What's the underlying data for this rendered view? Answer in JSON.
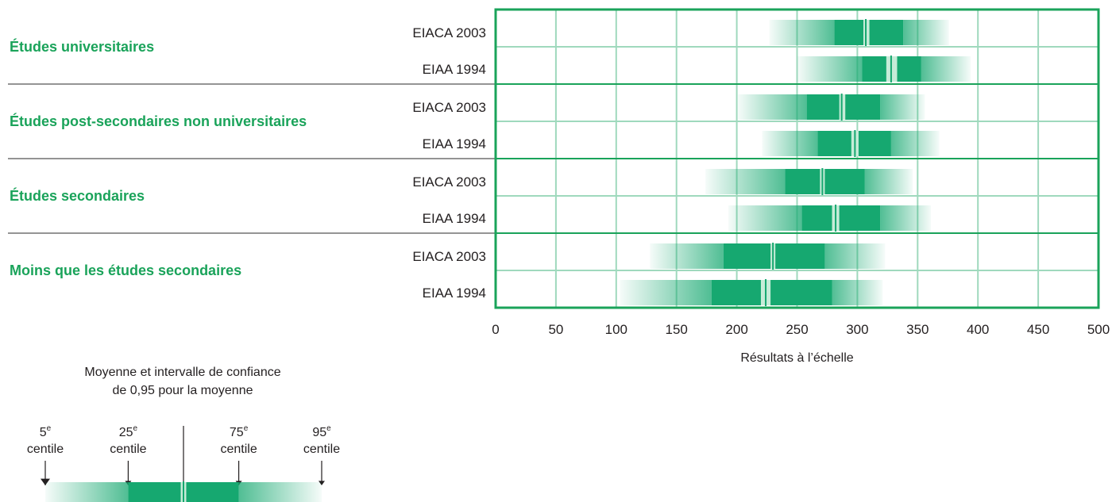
{
  "chart_data": {
    "type": "box-percentile",
    "xlabel": "Résultats à l’échelle",
    "xlim": [
      0,
      500
    ],
    "xticks": [
      0,
      50,
      100,
      150,
      200,
      250,
      300,
      350,
      400,
      450,
      500
    ],
    "groups": [
      {
        "name": "Études universitaires",
        "rows": [
          {
            "label": "EIACA 2003",
            "p5": 227,
            "p25": 281,
            "mean": 307,
            "ci": [
              305,
              310
            ],
            "p75": 338,
            "p95": 376
          },
          {
            "label": "EIAA 1994",
            "p5": 250,
            "p25": 304,
            "mean": 328,
            "ci": [
              324,
              333
            ],
            "p75": 353,
            "p95": 394
          }
        ]
      },
      {
        "name": "Études post-secondaires non universitaires",
        "rows": [
          {
            "label": "EIACA 2003",
            "p5": 201,
            "p25": 258,
            "mean": 287,
            "ci": [
              285,
              290
            ],
            "p75": 319,
            "p95": 356
          },
          {
            "label": "EIAA 1994",
            "p5": 221,
            "p25": 267,
            "mean": 298,
            "ci": [
              295,
              301
            ],
            "p75": 328,
            "p95": 368
          }
        ]
      },
      {
        "name": "Études secondaires",
        "rows": [
          {
            "label": "EIACA 2003",
            "p5": 174,
            "p25": 240,
            "mean": 271,
            "ci": [
              269,
              273
            ],
            "p75": 306,
            "p95": 346
          },
          {
            "label": "EIAA 1994",
            "p5": 193,
            "p25": 254,
            "mean": 282,
            "ci": [
              279,
              285
            ],
            "p75": 319,
            "p95": 361
          }
        ]
      },
      {
        "name": "Moins que les études secondaires",
        "rows": [
          {
            "label": "EIACA 2003",
            "p5": 128,
            "p25": 189,
            "mean": 230,
            "ci": [
              228,
              232
            ],
            "p75": 273,
            "p95": 323
          },
          {
            "label": "EIAA 1994",
            "p5": 103,
            "p25": 179,
            "mean": 224,
            "ci": [
              220,
              228
            ],
            "p75": 279,
            "p95": 321
          }
        ]
      }
    ]
  },
  "legend": {
    "title_line1": "Moyenne et intervalle de confiance",
    "title_line2": "de 0,95 pour la moyenne",
    "markers": [
      {
        "num": "5",
        "sup": "e",
        "word": "centile"
      },
      {
        "num": "25",
        "sup": "e",
        "word": "centile"
      },
      {
        "num": "75",
        "sup": "e",
        "word": "centile"
      },
      {
        "num": "95",
        "sup": "e",
        "word": "centile"
      }
    ]
  },
  "colors": {
    "bar": "#16a870",
    "frame": "#1aa35a",
    "grid": "#9fd9bd",
    "label": "#1aa35a",
    "sep": "#555555",
    "ci": "#c6ecd8"
  }
}
